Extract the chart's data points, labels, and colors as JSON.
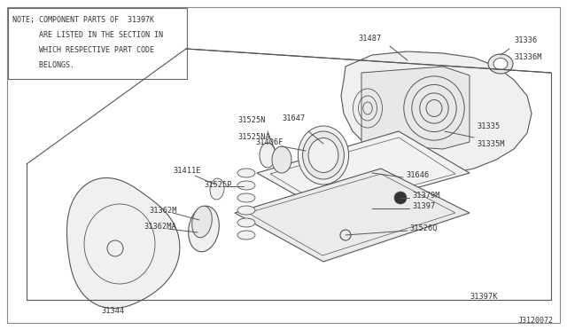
{
  "bg_color": "#ffffff",
  "line_color": "#555555",
  "text_color": "#333333",
  "fig_width": 6.4,
  "fig_height": 3.72,
  "note_text_lines": [
    "NOTE; COMPONENT PARTS OF  31397K",
    "      ARE LISTED IN THE SECTION IN",
    "      WHICH RESPECTIVE PART CODE",
    "      BELONGS."
  ],
  "diagram_id": "J3120072"
}
